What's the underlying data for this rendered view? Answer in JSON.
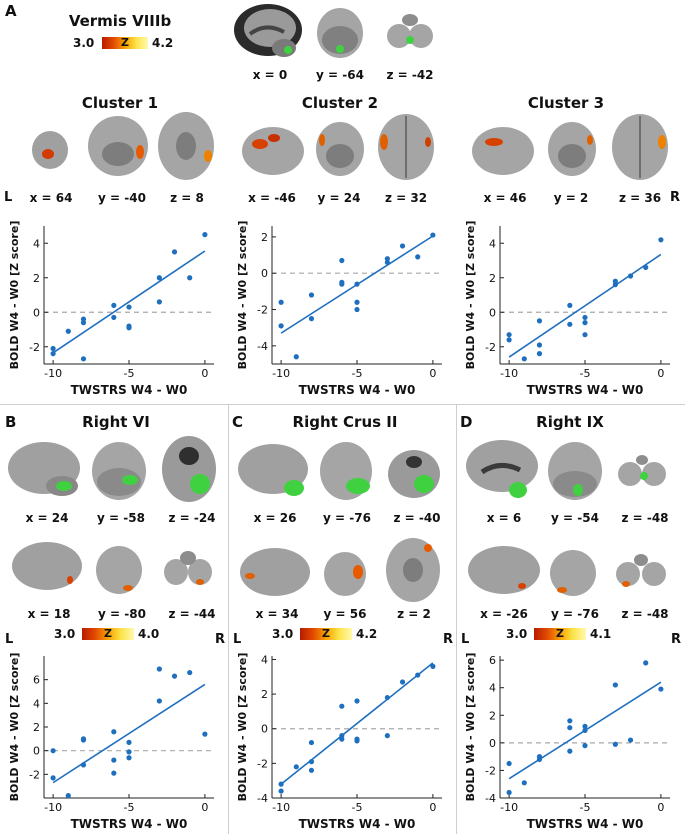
{
  "panels": {
    "A": {
      "letter": "A",
      "title": "Vermis VIIIb",
      "colorbar": {
        "min": "3.0",
        "max": "4.2",
        "z": "Z"
      },
      "top_coords": [
        "x = 0",
        "y = -64",
        "z = -42"
      ],
      "clusters": [
        {
          "title": "Cluster 1",
          "coords": [
            "x = 64",
            "y = -40",
            "z = 8"
          ]
        },
        {
          "title": "Cluster 2",
          "coords": [
            "x = -46",
            "y = 24",
            "z = 32"
          ]
        },
        {
          "title": "Cluster 3",
          "coords": [
            "x = 46",
            "y = 2",
            "z = 36"
          ]
        }
      ],
      "left_label": "L",
      "right_label": "R"
    },
    "B": {
      "letter": "B",
      "title": "Right VI",
      "row1": [
        "x = 24",
        "y = -58",
        "z = -24"
      ],
      "row2": [
        "x = 18",
        "y = -80",
        "z = -44"
      ],
      "colorbar": {
        "min": "3.0",
        "max": "4.0",
        "z": "Z"
      },
      "left_label": "L",
      "right_label": "R"
    },
    "C": {
      "letter": "C",
      "title": "Right Crus II",
      "row1": [
        "x = 26",
        "y = -76",
        "z = -40"
      ],
      "row2": [
        "x = 34",
        "y = 56",
        "z = 2"
      ],
      "colorbar": {
        "min": "3.0",
        "max": "4.2",
        "z": "Z"
      },
      "left_label": "L",
      "right_label": "R"
    },
    "D": {
      "letter": "D",
      "title": "Right IX",
      "row1": [
        "x = 6",
        "y = -54",
        "z = -48"
      ],
      "row2": [
        "x = -26",
        "y = -76",
        "z = -48"
      ],
      "colorbar": {
        "min": "3.0",
        "max": "4.1",
        "z": "Z"
      },
      "left_label": "L",
      "right_label": "R"
    }
  },
  "chart_data": [
    {
      "id": "a1",
      "type": "scatter",
      "xlabel": "TWSTRS W4 - W0",
      "ylabel": "BOLD W4 - W0 [Z score]",
      "xlim": [
        -10.6,
        0.6
      ],
      "ylim": [
        -3,
        5
      ],
      "xticks": [
        -10,
        -5,
        0
      ],
      "yticks": [
        -2,
        0,
        2,
        4
      ],
      "x": [
        -10,
        -10,
        -9,
        -8,
        -8,
        -8,
        -6,
        -6,
        -5,
        -5,
        -5,
        -3,
        -3,
        -2,
        -1,
        0
      ],
      "y": [
        -2.1,
        -2.4,
        -1.1,
        -0.4,
        -0.6,
        -2.7,
        0.4,
        -0.3,
        0.3,
        -0.8,
        -0.9,
        0.6,
        2.0,
        3.5,
        2.0,
        4.5
      ],
      "fit": [
        [
          -10,
          -2.35
        ],
        [
          0,
          3.55
        ]
      ]
    },
    {
      "id": "a2",
      "type": "scatter",
      "xlabel": "TWSTRS W4 - W0",
      "ylabel": "BOLD W4 - W0 [Z score]",
      "xlim": [
        -10.6,
        0.6
      ],
      "ylim": [
        -5,
        2.6
      ],
      "xticks": [
        -10,
        -5,
        0
      ],
      "yticks": [
        -4,
        -2,
        0,
        2
      ],
      "x": [
        -10,
        -10,
        -9,
        -8,
        -8,
        -6,
        -6,
        -6,
        -5,
        -5,
        -5,
        -3,
        -3,
        -2,
        -1,
        0
      ],
      "y": [
        -1.6,
        -2.9,
        -4.6,
        -2.5,
        -1.2,
        0.7,
        -0.6,
        -0.5,
        -2.0,
        -1.6,
        -0.6,
        0.8,
        0.6,
        1.5,
        0.9,
        2.1
      ],
      "fit": [
        [
          -10,
          -3.3
        ],
        [
          0,
          2.05
        ]
      ]
    },
    {
      "id": "a3",
      "type": "scatter",
      "xlabel": "TWSTRS W4 - W0",
      "ylabel": "BOLD W4 - W0 [Z score]",
      "xlim": [
        -10.6,
        0.6
      ],
      "ylim": [
        -3,
        5
      ],
      "xticks": [
        -10,
        -5,
        0
      ],
      "yticks": [
        -2,
        0,
        2,
        4
      ],
      "x": [
        -10,
        -10,
        -9,
        -8,
        -8,
        -8,
        -6,
        -6,
        -5,
        -5,
        -5,
        -3,
        -3,
        -2,
        -1,
        0
      ],
      "y": [
        -1.3,
        -1.6,
        -2.7,
        -1.9,
        -2.4,
        -0.5,
        0.4,
        -0.7,
        -0.3,
        -0.6,
        -1.3,
        1.8,
        1.6,
        2.1,
        2.6,
        4.2
      ],
      "fit": [
        [
          -10,
          -2.6
        ],
        [
          0,
          3.35
        ]
      ]
    },
    {
      "id": "b",
      "type": "scatter",
      "xlabel": "TWSTRS W4 - W0",
      "ylabel": "BOLD W4 - W0 [Z score]",
      "xlim": [
        -10.6,
        0.6
      ],
      "ylim": [
        -4,
        8
      ],
      "xticks": [
        -10,
        -5,
        0
      ],
      "yticks": [
        -2,
        0,
        2,
        4,
        6
      ],
      "x": [
        -10,
        -10,
        -9,
        -8,
        -8,
        -8,
        -6,
        -6,
        -6,
        -5,
        -5,
        -5,
        -3,
        -3,
        -2,
        -1,
        0
      ],
      "y": [
        -2.3,
        0.0,
        -3.8,
        -1.2,
        0.9,
        1.0,
        1.6,
        -1.9,
        -0.8,
        0.7,
        -0.1,
        -0.6,
        4.2,
        6.9,
        6.3,
        6.6,
        1.4
      ],
      "fit": [
        [
          -10,
          -2.7
        ],
        [
          0,
          5.6
        ]
      ]
    },
    {
      "id": "c",
      "type": "scatter",
      "xlabel": "TWSTRS W4 - W0",
      "ylabel": "BOLD W4 - W0 [Z score]",
      "xlim": [
        -10.6,
        0.6
      ],
      "ylim": [
        -4,
        4.2
      ],
      "xticks": [
        -10,
        -5,
        0
      ],
      "yticks": [
        -4,
        -2,
        0,
        2,
        4
      ],
      "x": [
        -10,
        -10,
        -9,
        -8,
        -8,
        -8,
        -6,
        -6,
        -6,
        -5,
        -5,
        -5,
        -3,
        -3,
        -2,
        -1,
        0
      ],
      "y": [
        -3.2,
        -3.6,
        -2.2,
        -0.8,
        -1.9,
        -2.4,
        1.3,
        -0.4,
        -0.6,
        1.6,
        -0.6,
        -0.7,
        1.8,
        -0.4,
        2.7,
        3.1,
        3.6
      ],
      "fit": [
        [
          -10,
          -3.2
        ],
        [
          0,
          3.8
        ]
      ]
    },
    {
      "id": "d",
      "type": "scatter",
      "xlabel": "TWSTRS W4 - W0",
      "ylabel": "BOLD W4 - W0 [Z score]",
      "xlim": [
        -10.6,
        0.6
      ],
      "ylim": [
        -4,
        6.3
      ],
      "xticks": [
        -10,
        -5,
        0
      ],
      "yticks": [
        -4,
        -2,
        0,
        2,
        4,
        6
      ],
      "x": [
        -10,
        -10,
        -9,
        -8,
        -8,
        -6,
        -6,
        -6,
        -5,
        -5,
        -5,
        -3,
        -3,
        -2,
        -1,
        0
      ],
      "y": [
        -1.5,
        -3.6,
        -2.9,
        -1.0,
        -1.2,
        1.6,
        1.1,
        -0.6,
        1.2,
        0.9,
        -0.2,
        4.2,
        -0.1,
        0.2,
        5.8,
        3.9
      ],
      "fit": [
        [
          -10,
          -2.6
        ],
        [
          0,
          4.4
        ]
      ]
    }
  ]
}
